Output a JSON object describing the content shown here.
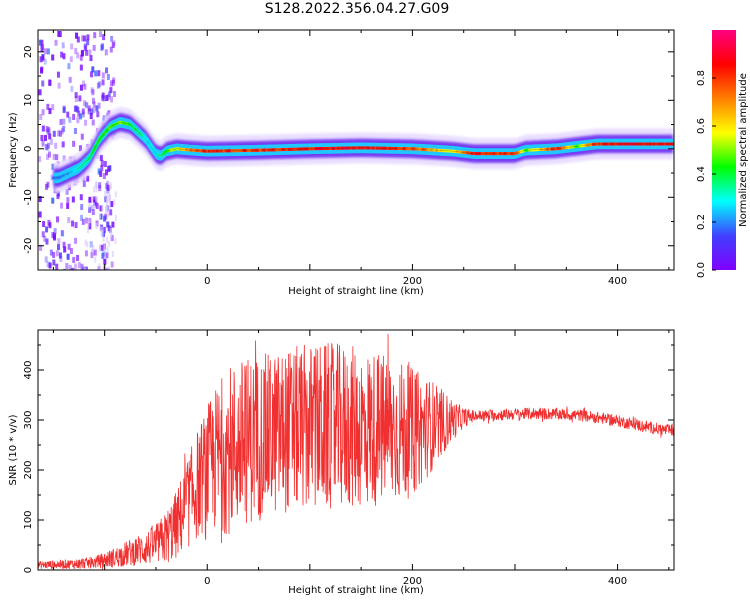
{
  "title": "S128.2022.356.04.27.G09",
  "chart_data": [
    {
      "type": "heatmap",
      "xlabel": "Height of straight line (km)",
      "ylabel": "Frequency (Hz)",
      "xlim": [
        -165,
        455
      ],
      "ylim": [
        -25,
        24.5
      ],
      "xticks": [
        0,
        200,
        400
      ],
      "yticks": [
        -20,
        -10,
        0,
        10,
        20
      ],
      "colorbar": {
        "label": "Normalized spectral amplitude",
        "range": [
          0,
          1
        ],
        "ticks": [
          "0.0",
          "0.2",
          "0.4",
          "0.6",
          "0.8"
        ],
        "tick_values": [
          0.0,
          0.2,
          0.4,
          0.6,
          0.8
        ],
        "colormap": [
          "#8000ff",
          "#4040ff",
          "#00ffff",
          "#00ff00",
          "#ffff00",
          "#ff8000",
          "#ff0000",
          "#ff0080"
        ]
      },
      "ridge": {
        "x": [
          -145,
          -135,
          -125,
          -115,
          -105,
          -95,
          -85,
          -75,
          -70,
          -60,
          -50,
          -45,
          -40,
          -30,
          -20,
          0,
          50,
          100,
          150,
          200,
          240,
          260,
          300,
          310,
          340,
          360,
          380,
          400,
          455
        ],
        "y": [
          -6,
          -5,
          -4,
          -2,
          2,
          4.5,
          5.5,
          5,
          4,
          2,
          -1,
          -1.5,
          -0.5,
          0,
          -0.2,
          -0.5,
          -0.3,
          0,
          0.2,
          0,
          -0.5,
          -1,
          -1,
          -0.3,
          0,
          0.5,
          1,
          1,
          1
        ],
        "amplitude": [
          0.2,
          0.25,
          0.35,
          0.4,
          0.45,
          0.5,
          0.55,
          0.45,
          0.4,
          0.3,
          0.3,
          0.4,
          0.5,
          0.6,
          0.75,
          0.9,
          0.85,
          0.9,
          0.95,
          0.85,
          0.6,
          0.9,
          0.85,
          0.5,
          0.9,
          0.5,
          0.9,
          0.95,
          0.95
        ]
      }
    },
    {
      "type": "line",
      "xlabel": "Height of straight line (km)",
      "ylabel": "SNR (10 * v/v)",
      "xlim": [
        -165,
        455
      ],
      "ylim": [
        0,
        480
      ],
      "xticks": [
        0,
        200,
        400
      ],
      "yticks": [
        0,
        100,
        200,
        300,
        400
      ],
      "series": [
        {
          "color": "#f03030",
          "envelope": {
            "x": [
              -165,
              -130,
              -110,
              -90,
              -70,
              -50,
              -40,
              -30,
              -20,
              -10,
              0,
              10,
              20,
              40,
              60,
              80,
              100,
              120,
              140,
              160,
              180,
              200,
              220,
              240,
              250,
              260,
              280,
              300,
              320,
              340,
              360,
              380,
              400,
              420,
              440,
              455
            ],
            "mean": [
              10,
              12,
              15,
              25,
              38,
              50,
              65,
              90,
              130,
              170,
              200,
              225,
              240,
              260,
              270,
              280,
              285,
              285,
              285,
              283,
              280,
              275,
              290,
              300,
              305,
              308,
              310,
              312,
              313,
              312,
              310,
              305,
              298,
              290,
              282,
              278
            ],
            "spread": [
              8,
              10,
              12,
              20,
              30,
              40,
              55,
              70,
              90,
              110,
              130,
              150,
              170,
              170,
              165,
              165,
              170,
              170,
              165,
              160,
              150,
              130,
              90,
              40,
              20,
              12,
              12,
              12,
              12,
              12,
              12,
              12,
              12,
              12,
              12,
              12
            ]
          }
        }
      ]
    }
  ]
}
